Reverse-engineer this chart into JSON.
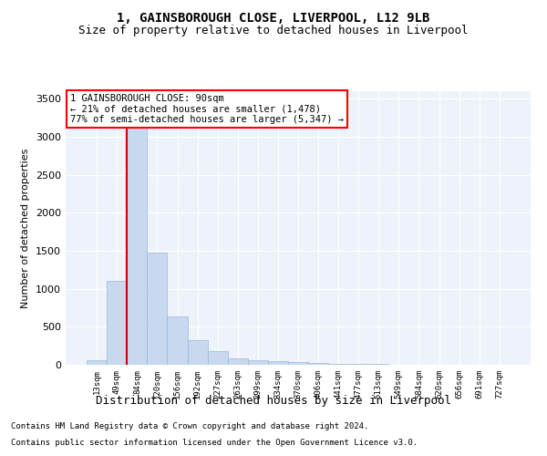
{
  "title": "1, GAINSBOROUGH CLOSE, LIVERPOOL, L12 9LB",
  "subtitle": "Size of property relative to detached houses in Liverpool",
  "xlabel": "Distribution of detached houses by size in Liverpool",
  "ylabel": "Number of detached properties",
  "footnote1": "Contains HM Land Registry data © Crown copyright and database right 2024.",
  "footnote2": "Contains public sector information licensed under the Open Government Licence v3.0.",
  "annotation_title": "1 GAINSBOROUGH CLOSE: 90sqm",
  "annotation_line1": "← 21% of detached houses are smaller (1,478)",
  "annotation_line2": "77% of semi-detached houses are larger (5,347) →",
  "bar_color": "#c8d8ef",
  "bar_edge_color": "#9ab8d8",
  "marker_color": "#cc0000",
  "background_color": "#eef2fa",
  "grid_color": "#ffffff",
  "categories": [
    "13sqm",
    "49sqm",
    "84sqm",
    "120sqm",
    "156sqm",
    "192sqm",
    "227sqm",
    "263sqm",
    "299sqm",
    "334sqm",
    "370sqm",
    "406sqm",
    "441sqm",
    "477sqm",
    "513sqm",
    "549sqm",
    "584sqm",
    "620sqm",
    "656sqm",
    "691sqm",
    "727sqm"
  ],
  "values": [
    55,
    1100,
    3300,
    1480,
    640,
    330,
    175,
    90,
    65,
    50,
    40,
    25,
    18,
    12,
    7,
    5,
    4,
    3,
    2,
    2,
    1
  ],
  "ylim": [
    0,
    3600
  ],
  "yticks": [
    0,
    500,
    1000,
    1500,
    2000,
    2500,
    3000,
    3500
  ],
  "property_bar_index": 1.5
}
